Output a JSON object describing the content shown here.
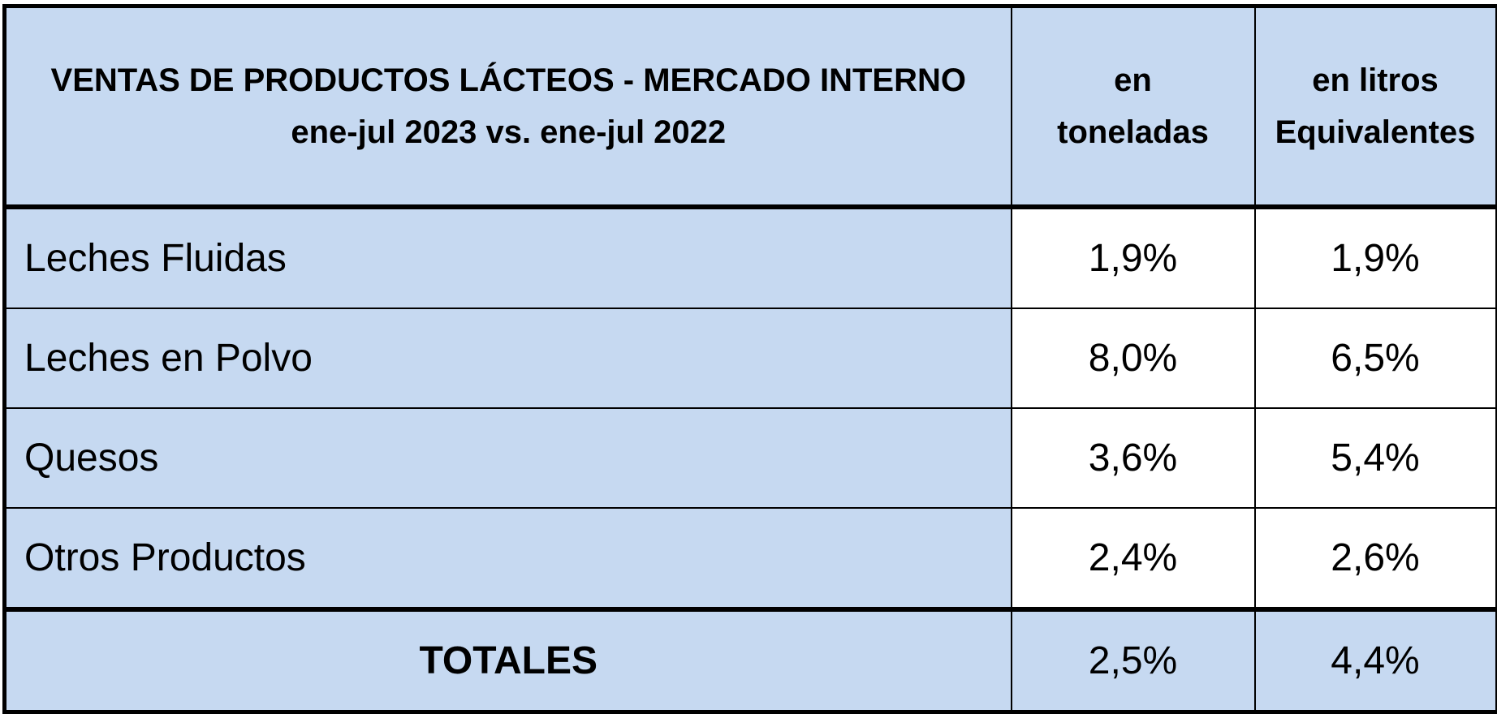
{
  "chart_data": {
    "type": "table",
    "title_lines": [
      "VENTAS DE PRODUCTOS LÁCTEOS - MERCADO INTERNO",
      "ene-jul 2023 vs. ene-jul 2022"
    ],
    "columns": [
      {
        "lines": [
          "en",
          "toneladas"
        ]
      },
      {
        "lines": [
          "en litros",
          "Equivalentes"
        ]
      }
    ],
    "rows": [
      {
        "label": "Leches Fluidas",
        "values": [
          "1,9%",
          "1,9%"
        ]
      },
      {
        "label": "Leches en Polvo",
        "values": [
          "8,0%",
          "6,5%"
        ]
      },
      {
        "label": "Quesos",
        "values": [
          "3,6%",
          "5,4%"
        ]
      },
      {
        "label": "Otros Productos",
        "values": [
          "2,4%",
          "2,6%"
        ]
      }
    ],
    "totals": {
      "label": "TOTALES",
      "values": [
        "2,5%",
        "4,4%"
      ]
    },
    "colors": {
      "header_fill": "#c6d9f1",
      "value_fill": "#ffffff",
      "border": "#000000"
    }
  }
}
